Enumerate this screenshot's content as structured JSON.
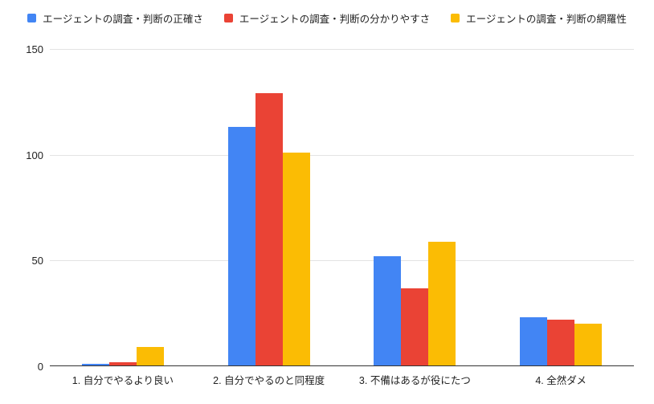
{
  "chart_data": {
    "type": "bar",
    "title": "",
    "categories": [
      "1. 自分でやるより良い",
      "2. 自分でやるのと同程度",
      "3. 不備はあるが役にたつ",
      "4. 全然ダメ"
    ],
    "series": [
      {
        "name": "エージェントの調査・判断の正確さ",
        "color": "#4285F4",
        "values": [
          1,
          113,
          52,
          23
        ]
      },
      {
        "name": "エージェントの調査・判断の分かりやすさ",
        "color": "#EA4335",
        "values": [
          2,
          129,
          37,
          22
        ]
      },
      {
        "name": "エージェントの調査・判断の網羅性",
        "color": "#FBBC04",
        "values": [
          9,
          101,
          59,
          20
        ]
      }
    ],
    "xlabel": "",
    "ylabel": "",
    "ylim": [
      0,
      150
    ],
    "yticks": [
      0,
      50,
      100,
      150
    ],
    "grid": true,
    "legend_position": "top",
    "background_color": "#ffffff",
    "gridline_color": "#e3e3e3",
    "baseline_color": "#333333",
    "text_color": "#222222"
  }
}
